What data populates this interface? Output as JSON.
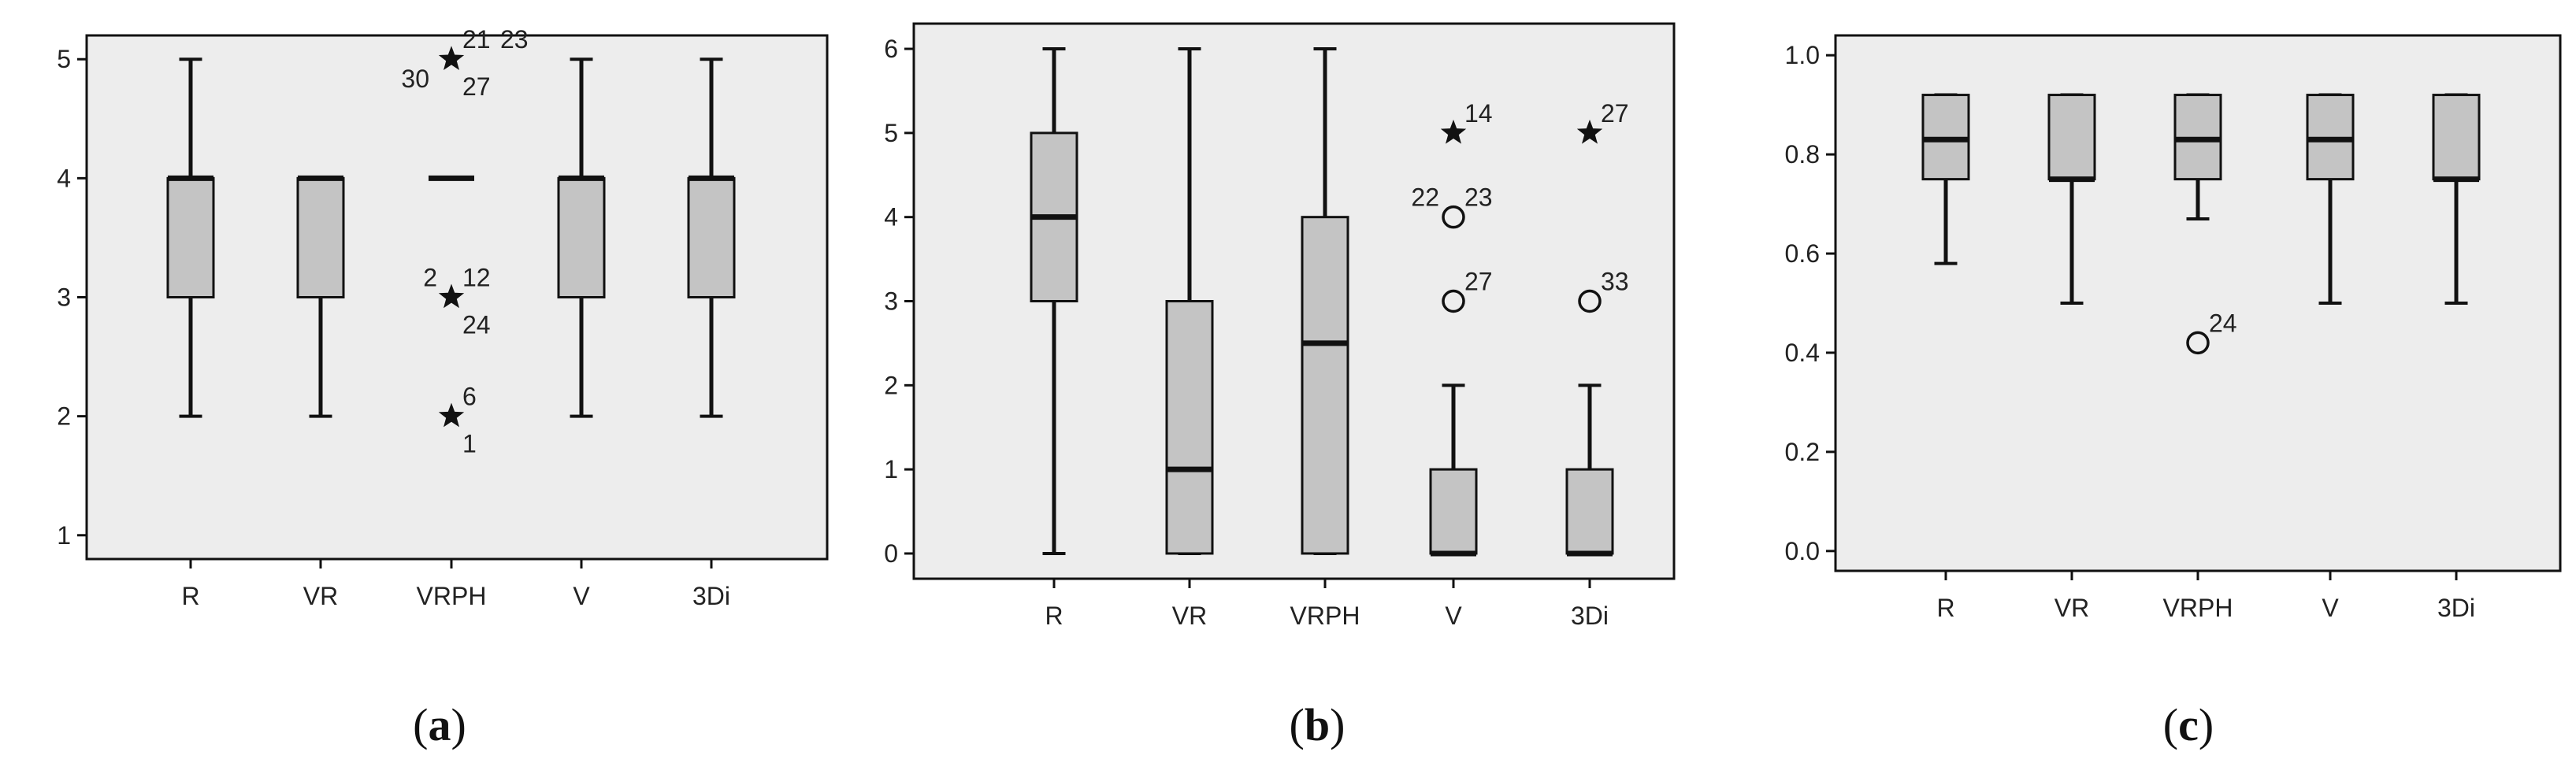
{
  "colors": {
    "plot_background": "#ededed",
    "box_fill": "#c4c4c4",
    "line": "#111111"
  },
  "chart_data": [
    {
      "type": "box",
      "caption": {
        "open": "(",
        "letter": "a",
        "close": ")"
      },
      "categories": [
        "R",
        "VR",
        "VRPH",
        "V",
        "3Di"
      ],
      "ylim": [
        0.8,
        5.2
      ],
      "yticks": [
        1,
        2,
        3,
        4,
        5
      ],
      "ytick_labels": [
        "1",
        "2",
        "3",
        "4",
        "5"
      ],
      "boxes": [
        {
          "category": "R",
          "whisker_low": 2,
          "q1": 3,
          "median": 4,
          "q3": 4,
          "whisker_high": 5
        },
        {
          "category": "VR",
          "whisker_low": 2,
          "q1": 3,
          "median": 4,
          "q3": 4,
          "whisker_high": 4
        },
        {
          "category": "VRPH",
          "whisker_low": 4,
          "q1": 4,
          "median": 4,
          "q3": 4,
          "whisker_high": 4
        },
        {
          "category": "V",
          "whisker_low": 2,
          "q1": 3,
          "median": 4,
          "q3": 4,
          "whisker_high": 5
        },
        {
          "category": "3Di",
          "whisker_low": 2,
          "q1": 3,
          "median": 4,
          "q3": 4,
          "whisker_high": 5
        }
      ],
      "outliers": [
        {
          "category": "VRPH",
          "value": 5,
          "marker": "star",
          "labels": [
            {
              "text": "21",
              "pos": "right-top"
            },
            {
              "text": "23",
              "pos": "right-top-far"
            },
            {
              "text": "30",
              "pos": "left-bottom"
            },
            {
              "text": "27",
              "pos": "right-bottom"
            }
          ]
        },
        {
          "category": "VRPH",
          "value": 3,
          "marker": "star",
          "labels": [
            {
              "text": "2",
              "pos": "left-top"
            },
            {
              "text": "12",
              "pos": "right-top"
            },
            {
              "text": "24",
              "pos": "right-bottom"
            }
          ]
        },
        {
          "category": "VRPH",
          "value": 2,
          "marker": "star",
          "labels": [
            {
              "text": "6",
              "pos": "right-top"
            },
            {
              "text": "1",
              "pos": "right-bottom"
            }
          ]
        }
      ]
    },
    {
      "type": "box",
      "caption": {
        "open": "(",
        "letter": "b",
        "close": ")"
      },
      "categories": [
        "R",
        "VR",
        "VRPH",
        "V",
        "3Di"
      ],
      "ylim": [
        -0.3,
        6.3
      ],
      "yticks": [
        0,
        1,
        2,
        3,
        4,
        5,
        6
      ],
      "ytick_labels": [
        "0",
        "1",
        "2",
        "3",
        "4",
        "5",
        "6"
      ],
      "boxes": [
        {
          "category": "R",
          "whisker_low": 0,
          "q1": 3,
          "median": 4,
          "q3": 5,
          "whisker_high": 6
        },
        {
          "category": "VR",
          "whisker_low": 0,
          "q1": 0,
          "median": 1,
          "q3": 3,
          "whisker_high": 6
        },
        {
          "category": "VRPH",
          "whisker_low": 0,
          "q1": 0,
          "median": 2.5,
          "q3": 4,
          "whisker_high": 6
        },
        {
          "category": "V",
          "whisker_low": 0,
          "q1": 0,
          "median": 0,
          "q3": 1,
          "whisker_high": 2
        },
        {
          "category": "3Di",
          "whisker_low": 0,
          "q1": 0,
          "median": 0,
          "q3": 1,
          "whisker_high": 2
        }
      ],
      "outliers": [
        {
          "category": "V",
          "value": 5,
          "marker": "star",
          "labels": [
            {
              "text": "14",
              "pos": "right-top"
            }
          ]
        },
        {
          "category": "V",
          "value": 4,
          "marker": "circle",
          "labels": [
            {
              "text": "22",
              "pos": "left-top"
            },
            {
              "text": "23",
              "pos": "right-top"
            }
          ]
        },
        {
          "category": "V",
          "value": 3,
          "marker": "circle",
          "labels": [
            {
              "text": "27",
              "pos": "right-top"
            }
          ]
        },
        {
          "category": "3Di",
          "value": 5,
          "marker": "star",
          "labels": [
            {
              "text": "27",
              "pos": "right-top"
            }
          ]
        },
        {
          "category": "3Di",
          "value": 3,
          "marker": "circle",
          "labels": [
            {
              "text": "33",
              "pos": "right-top"
            }
          ]
        }
      ]
    },
    {
      "type": "box",
      "caption": {
        "open": "(",
        "letter": "c",
        "close": ")"
      },
      "categories": [
        "R",
        "VR",
        "VRPH",
        "V",
        "3Di"
      ],
      "ylim": [
        -0.04,
        1.04
      ],
      "yticks": [
        0.0,
        0.2,
        0.4,
        0.6,
        0.8,
        1.0
      ],
      "ytick_labels": [
        "0.0",
        "0.2",
        "0.4",
        "0.6",
        "0.8",
        "1.0"
      ],
      "boxes": [
        {
          "category": "R",
          "whisker_low": 0.58,
          "q1": 0.75,
          "median": 0.83,
          "q3": 0.92,
          "whisker_high": 0.92
        },
        {
          "category": "VR",
          "whisker_low": 0.5,
          "q1": 0.75,
          "median": 0.75,
          "q3": 0.92,
          "whisker_high": 0.92
        },
        {
          "category": "VRPH",
          "whisker_low": 0.67,
          "q1": 0.75,
          "median": 0.83,
          "q3": 0.92,
          "whisker_high": 0.92
        },
        {
          "category": "V",
          "whisker_low": 0.5,
          "q1": 0.75,
          "median": 0.83,
          "q3": 0.92,
          "whisker_high": 0.92
        },
        {
          "category": "3Di",
          "whisker_low": 0.5,
          "q1": 0.75,
          "median": 0.75,
          "q3": 0.92,
          "whisker_high": 0.92
        }
      ],
      "outliers": [
        {
          "category": "VRPH",
          "value": 0.42,
          "marker": "circle",
          "labels": [
            {
              "text": "24",
              "pos": "right-top"
            }
          ]
        }
      ]
    }
  ]
}
